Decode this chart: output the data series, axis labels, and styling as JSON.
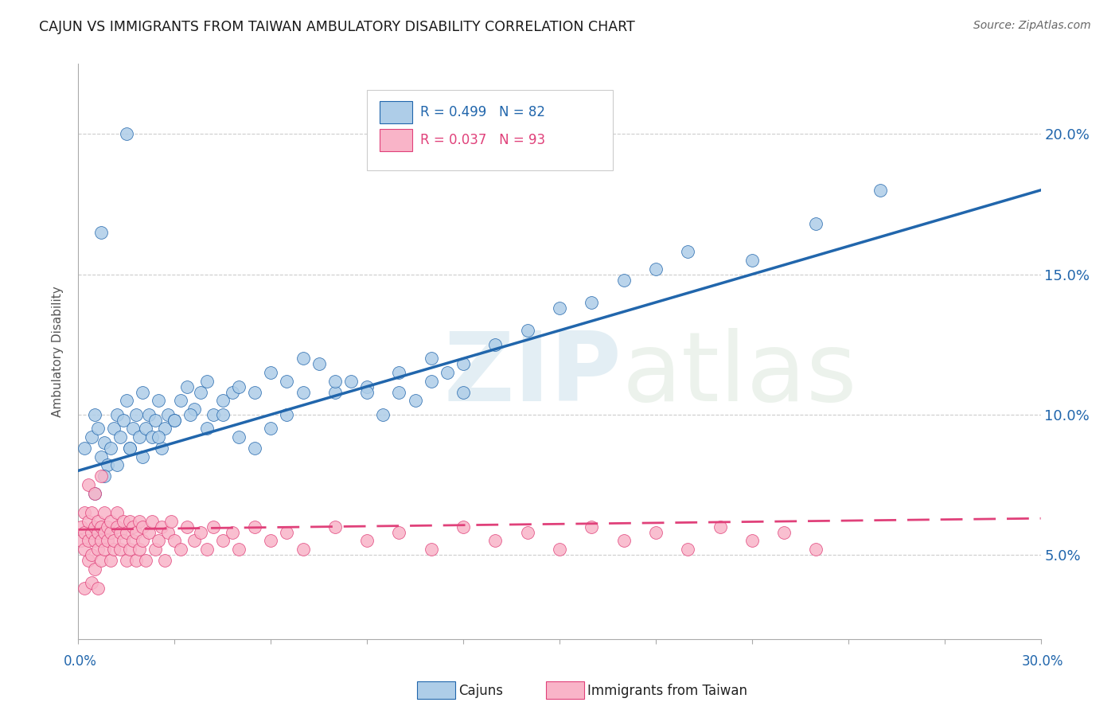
{
  "title": "CAJUN VS IMMIGRANTS FROM TAIWAN AMBULATORY DISABILITY CORRELATION CHART",
  "source": "Source: ZipAtlas.com",
  "ylabel": "Ambulatory Disability",
  "yticks": [
    0.05,
    0.1,
    0.15,
    0.2
  ],
  "ytick_labels": [
    "5.0%",
    "10.0%",
    "15.0%",
    "20.0%"
  ],
  "xmin": 0.0,
  "xmax": 0.3,
  "ymin": 0.02,
  "ymax": 0.225,
  "blue_R": "0.499",
  "blue_N": "82",
  "pink_R": "0.037",
  "pink_N": "93",
  "blue_color": "#aecde8",
  "pink_color": "#f9b4c8",
  "blue_line_color": "#2166ac",
  "pink_line_color": "#e0417a",
  "cajun_label": "Cajuns",
  "taiwan_label": "Immigrants from Taiwan",
  "blue_line_x0": 0.0,
  "blue_line_y0": 0.08,
  "blue_line_x1": 0.3,
  "blue_line_y1": 0.18,
  "pink_line_x0": 0.0,
  "pink_line_y0": 0.059,
  "pink_line_x1": 0.3,
  "pink_line_y1": 0.063,
  "blue_scatter_x": [
    0.002,
    0.004,
    0.005,
    0.006,
    0.007,
    0.008,
    0.009,
    0.01,
    0.011,
    0.012,
    0.013,
    0.014,
    0.015,
    0.016,
    0.017,
    0.018,
    0.019,
    0.02,
    0.021,
    0.022,
    0.023,
    0.024,
    0.025,
    0.026,
    0.027,
    0.028,
    0.03,
    0.032,
    0.034,
    0.036,
    0.038,
    0.04,
    0.042,
    0.045,
    0.048,
    0.05,
    0.055,
    0.06,
    0.065,
    0.07,
    0.075,
    0.08,
    0.085,
    0.09,
    0.095,
    0.1,
    0.105,
    0.11,
    0.115,
    0.12,
    0.005,
    0.008,
    0.012,
    0.016,
    0.02,
    0.025,
    0.03,
    0.035,
    0.04,
    0.045,
    0.05,
    0.055,
    0.06,
    0.065,
    0.07,
    0.08,
    0.09,
    0.1,
    0.11,
    0.12,
    0.13,
    0.14,
    0.15,
    0.16,
    0.17,
    0.18,
    0.19,
    0.21,
    0.23,
    0.25,
    0.007,
    0.015
  ],
  "blue_scatter_y": [
    0.088,
    0.092,
    0.1,
    0.095,
    0.085,
    0.09,
    0.082,
    0.088,
    0.095,
    0.1,
    0.092,
    0.098,
    0.105,
    0.088,
    0.095,
    0.1,
    0.092,
    0.108,
    0.095,
    0.1,
    0.092,
    0.098,
    0.105,
    0.088,
    0.095,
    0.1,
    0.098,
    0.105,
    0.11,
    0.102,
    0.108,
    0.112,
    0.1,
    0.105,
    0.108,
    0.11,
    0.108,
    0.115,
    0.112,
    0.12,
    0.118,
    0.108,
    0.112,
    0.11,
    0.1,
    0.108,
    0.105,
    0.112,
    0.115,
    0.108,
    0.072,
    0.078,
    0.082,
    0.088,
    0.085,
    0.092,
    0.098,
    0.1,
    0.095,
    0.1,
    0.092,
    0.088,
    0.095,
    0.1,
    0.108,
    0.112,
    0.108,
    0.115,
    0.12,
    0.118,
    0.125,
    0.13,
    0.138,
    0.14,
    0.148,
    0.152,
    0.158,
    0.155,
    0.168,
    0.18,
    0.165,
    0.2
  ],
  "pink_scatter_x": [
    0.001,
    0.001,
    0.002,
    0.002,
    0.002,
    0.003,
    0.003,
    0.003,
    0.004,
    0.004,
    0.004,
    0.005,
    0.005,
    0.005,
    0.006,
    0.006,
    0.006,
    0.007,
    0.007,
    0.007,
    0.008,
    0.008,
    0.008,
    0.009,
    0.009,
    0.01,
    0.01,
    0.01,
    0.011,
    0.011,
    0.012,
    0.012,
    0.013,
    0.013,
    0.014,
    0.014,
    0.015,
    0.015,
    0.016,
    0.016,
    0.017,
    0.017,
    0.018,
    0.018,
    0.019,
    0.019,
    0.02,
    0.02,
    0.021,
    0.022,
    0.023,
    0.024,
    0.025,
    0.026,
    0.027,
    0.028,
    0.029,
    0.03,
    0.032,
    0.034,
    0.036,
    0.038,
    0.04,
    0.042,
    0.045,
    0.048,
    0.05,
    0.055,
    0.06,
    0.065,
    0.07,
    0.08,
    0.09,
    0.1,
    0.11,
    0.12,
    0.13,
    0.14,
    0.15,
    0.16,
    0.17,
    0.18,
    0.19,
    0.2,
    0.21,
    0.22,
    0.23,
    0.002,
    0.003,
    0.004,
    0.005,
    0.006,
    0.007
  ],
  "pink_scatter_y": [
    0.055,
    0.06,
    0.058,
    0.052,
    0.065,
    0.048,
    0.055,
    0.062,
    0.058,
    0.05,
    0.065,
    0.055,
    0.06,
    0.045,
    0.058,
    0.062,
    0.052,
    0.055,
    0.06,
    0.048,
    0.058,
    0.065,
    0.052,
    0.055,
    0.06,
    0.048,
    0.058,
    0.062,
    0.052,
    0.055,
    0.06,
    0.065,
    0.058,
    0.052,
    0.055,
    0.062,
    0.048,
    0.058,
    0.052,
    0.062,
    0.055,
    0.06,
    0.048,
    0.058,
    0.062,
    0.052,
    0.055,
    0.06,
    0.048,
    0.058,
    0.062,
    0.052,
    0.055,
    0.06,
    0.048,
    0.058,
    0.062,
    0.055,
    0.052,
    0.06,
    0.055,
    0.058,
    0.052,
    0.06,
    0.055,
    0.058,
    0.052,
    0.06,
    0.055,
    0.058,
    0.052,
    0.06,
    0.055,
    0.058,
    0.052,
    0.06,
    0.055,
    0.058,
    0.052,
    0.06,
    0.055,
    0.058,
    0.052,
    0.06,
    0.055,
    0.058,
    0.052,
    0.038,
    0.075,
    0.04,
    0.072,
    0.038,
    0.078
  ]
}
